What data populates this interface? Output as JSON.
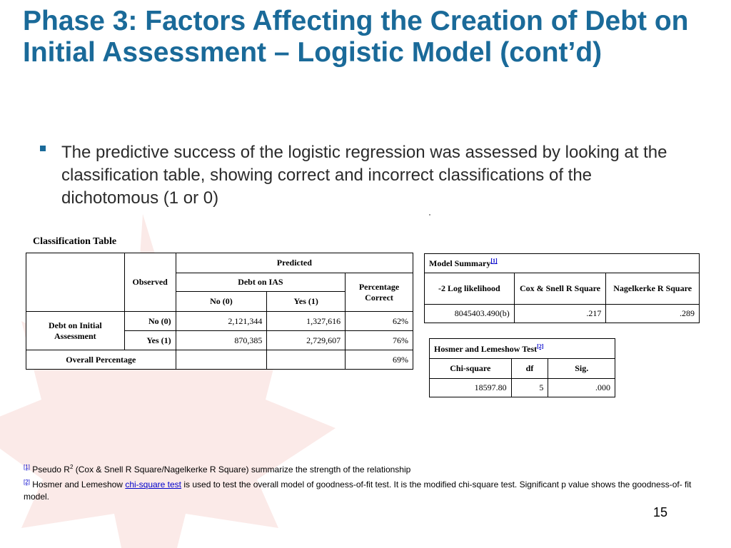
{
  "slide": {
    "title": "Phase 3: Factors Affecting the Creation of Debt on Initial Assessment – Logistic Model (cont’d)",
    "bullet": "The predictive success of the logistic regression was assessed by looking at the classification table, showing correct and incorrect classifications of the dichotomous (1 or 0)",
    "page_number": "15"
  },
  "classification_table": {
    "title": "Classification Table",
    "observed_header": "Observed",
    "predicted_header": "Predicted",
    "debt_header": "Debt on IAS",
    "percentage_header": "Percentage Correct",
    "col_no": "No (0)",
    "col_yes": "Yes (1)",
    "group_label": "Debt on Initial Assessment",
    "rows": [
      {
        "label": "No (0)",
        "no": "2,121,344",
        "yes": "1,327,616",
        "pct": "62%"
      },
      {
        "label": "Yes (1)",
        "no": "870,385",
        "yes": "2,729,607",
        "pct": "76%"
      }
    ],
    "overall_label": "Overall Percentage",
    "overall_pct": "69%"
  },
  "model_summary": {
    "title": "Model Summary",
    "ref": "[1]",
    "headers": [
      "-2 Log likelihood",
      "Cox & Snell R Square",
      "Nagelkerke R Square"
    ],
    "values": [
      "8045403.490(b)",
      ".217",
      ".289"
    ]
  },
  "hosmer_test": {
    "title": "Hosmer and Lemeshow Test",
    "ref": "[2]",
    "headers": [
      "Chi-square",
      "df",
      "Sig."
    ],
    "values": [
      "18597.80",
      "5",
      ".000"
    ]
  },
  "footnotes": {
    "fn1_ref": "[1]",
    "fn1_before": " Pseudo R",
    "fn1_sup": "2",
    "fn1_after": " (Cox & Snell R Square/Nagelkerke R Square) summarize the strength of the relationship",
    "fn2_ref": "[2]",
    "fn2_before": " Hosmer and Lemeshow ",
    "fn2_link": "chi-square test",
    "fn2_after": " is used to test the overall model of goodness-of-fit test. It is the modified chi-square test. Significant p value shows the goodness-of- fit model."
  },
  "colors": {
    "title": "#1a6a99",
    "bullet": "#1a6a99",
    "link": "#0000cc",
    "watermark": "#f7d9d6"
  }
}
